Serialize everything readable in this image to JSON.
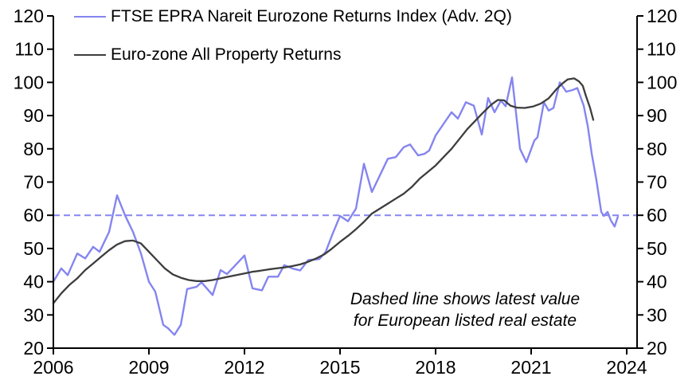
{
  "annotation": {
    "line1": "Dashed line shows latest value",
    "line2": "for European listed real estate"
  },
  "chart_data": {
    "type": "line",
    "title": "",
    "xlabel": "",
    "ylabel": "",
    "grid": false,
    "legend_position": "top-left-inside",
    "x_axis": {
      "min": 2006,
      "max": 2024.33,
      "ticks": [
        2006,
        2009,
        2012,
        2015,
        2018,
        2021,
        2024
      ]
    },
    "y_axis": {
      "min": 20,
      "max": 120,
      "ticks": [
        20,
        30,
        40,
        50,
        60,
        70,
        80,
        90,
        100,
        110,
        120
      ],
      "mirrored_right": true
    },
    "reference_line": {
      "value": 60,
      "style": "dashed",
      "color": "#8585f0"
    },
    "axis_color": "#000000",
    "series": [
      {
        "name": "FTSE EPRA Nareit Eurozone Returns Index (Adv. 2Q)",
        "color": "#8585f0",
        "width": 2.4,
        "points": [
          [
            2006.0,
            40
          ],
          [
            2006.25,
            44
          ],
          [
            2006.45,
            42
          ],
          [
            2006.75,
            48.5
          ],
          [
            2007.0,
            47
          ],
          [
            2007.25,
            50.5
          ],
          [
            2007.45,
            49
          ],
          [
            2007.75,
            55
          ],
          [
            2008.0,
            66
          ],
          [
            2008.25,
            60
          ],
          [
            2008.5,
            55
          ],
          [
            2008.75,
            48.5
          ],
          [
            2009.0,
            40
          ],
          [
            2009.2,
            37
          ],
          [
            2009.45,
            27
          ],
          [
            2009.6,
            26
          ],
          [
            2009.8,
            24
          ],
          [
            2010.0,
            27
          ],
          [
            2010.2,
            37.8
          ],
          [
            2010.5,
            38.5
          ],
          [
            2010.65,
            39.8
          ],
          [
            2011.0,
            36
          ],
          [
            2011.25,
            43.5
          ],
          [
            2011.45,
            42.3
          ],
          [
            2011.7,
            44.8
          ],
          [
            2012.0,
            47.9
          ],
          [
            2012.25,
            38
          ],
          [
            2012.55,
            37.4
          ],
          [
            2012.75,
            41.5
          ],
          [
            2013.05,
            41.5
          ],
          [
            2013.25,
            45
          ],
          [
            2013.5,
            44
          ],
          [
            2013.75,
            43.4
          ],
          [
            2014.0,
            46.5
          ],
          [
            2014.35,
            46.8
          ],
          [
            2014.55,
            49
          ],
          [
            2014.75,
            54
          ],
          [
            2015.0,
            59.8
          ],
          [
            2015.25,
            58.2
          ],
          [
            2015.5,
            62
          ],
          [
            2015.75,
            75.5
          ],
          [
            2016.0,
            67
          ],
          [
            2016.25,
            72
          ],
          [
            2016.5,
            77
          ],
          [
            2016.75,
            77.5
          ],
          [
            2017.0,
            80.5
          ],
          [
            2017.2,
            81.3
          ],
          [
            2017.45,
            78
          ],
          [
            2017.65,
            78.5
          ],
          [
            2017.8,
            79.5
          ],
          [
            2018.0,
            84
          ],
          [
            2018.25,
            87.5
          ],
          [
            2018.5,
            91
          ],
          [
            2018.7,
            89.1
          ],
          [
            2018.95,
            94
          ],
          [
            2019.2,
            93
          ],
          [
            2019.45,
            84.3
          ],
          [
            2019.65,
            95.3
          ],
          [
            2019.85,
            91
          ],
          [
            2020.05,
            94.5
          ],
          [
            2020.2,
            92.8
          ],
          [
            2020.4,
            101.5
          ],
          [
            2020.65,
            80
          ],
          [
            2020.85,
            76
          ],
          [
            2021.1,
            82.5
          ],
          [
            2021.2,
            83.5
          ],
          [
            2021.4,
            94
          ],
          [
            2021.55,
            91.5
          ],
          [
            2021.7,
            92.3
          ],
          [
            2021.9,
            100
          ],
          [
            2022.1,
            97.2
          ],
          [
            2022.3,
            97.7
          ],
          [
            2022.45,
            98.3
          ],
          [
            2022.65,
            93
          ],
          [
            2022.78,
            86.7
          ],
          [
            2022.9,
            78.6
          ],
          [
            2023.05,
            70.5
          ],
          [
            2023.2,
            61
          ],
          [
            2023.28,
            59.8
          ],
          [
            2023.4,
            61
          ],
          [
            2023.5,
            58.5
          ],
          [
            2023.62,
            56.6
          ],
          [
            2023.72,
            59.5
          ]
        ]
      },
      {
        "name": "Euro-zone All Property Returns",
        "color": "#3d3d3d",
        "width": 2.3,
        "points": [
          [
            2006.0,
            33.5
          ],
          [
            2006.25,
            36.5
          ],
          [
            2006.5,
            39
          ],
          [
            2006.75,
            41
          ],
          [
            2007.0,
            43.5
          ],
          [
            2007.25,
            45.5
          ],
          [
            2007.5,
            47.5
          ],
          [
            2007.75,
            49.5
          ],
          [
            2008.0,
            51.2
          ],
          [
            2008.25,
            52.2
          ],
          [
            2008.5,
            52.4
          ],
          [
            2008.75,
            51.5
          ],
          [
            2009.0,
            49
          ],
          [
            2009.25,
            46.5
          ],
          [
            2009.5,
            44
          ],
          [
            2009.75,
            42.2
          ],
          [
            2010.0,
            41.2
          ],
          [
            2010.25,
            40.5
          ],
          [
            2010.5,
            40.2
          ],
          [
            2010.75,
            40.2
          ],
          [
            2011.0,
            40.5
          ],
          [
            2011.25,
            41
          ],
          [
            2011.5,
            41.5
          ],
          [
            2011.75,
            42
          ],
          [
            2012.0,
            42.5
          ],
          [
            2012.25,
            43
          ],
          [
            2012.5,
            43.3
          ],
          [
            2012.75,
            43.7
          ],
          [
            2013.0,
            44
          ],
          [
            2013.25,
            44.3
          ],
          [
            2013.5,
            44.7
          ],
          [
            2013.75,
            45.2
          ],
          [
            2014.0,
            46
          ],
          [
            2014.25,
            47
          ],
          [
            2014.5,
            48.2
          ],
          [
            2014.75,
            50
          ],
          [
            2015.0,
            52
          ],
          [
            2015.25,
            53.8
          ],
          [
            2015.5,
            55.8
          ],
          [
            2015.75,
            58
          ],
          [
            2016.0,
            60.5
          ],
          [
            2016.25,
            62
          ],
          [
            2016.5,
            63.5
          ],
          [
            2016.75,
            65
          ],
          [
            2017.0,
            66.5
          ],
          [
            2017.25,
            68.5
          ],
          [
            2017.5,
            71
          ],
          [
            2017.75,
            73
          ],
          [
            2018.0,
            75
          ],
          [
            2018.25,
            77.5
          ],
          [
            2018.5,
            80
          ],
          [
            2018.75,
            83
          ],
          [
            2019.0,
            86
          ],
          [
            2019.25,
            88.5
          ],
          [
            2019.5,
            91
          ],
          [
            2019.75,
            93.3
          ],
          [
            2019.95,
            94.7
          ],
          [
            2020.15,
            94.6
          ],
          [
            2020.35,
            93
          ],
          [
            2020.55,
            92.4
          ],
          [
            2020.8,
            92.3
          ],
          [
            2021.05,
            92.7
          ],
          [
            2021.3,
            93.6
          ],
          [
            2021.55,
            95.2
          ],
          [
            2021.8,
            98
          ],
          [
            2022.0,
            99.8
          ],
          [
            2022.15,
            100.9
          ],
          [
            2022.35,
            101.2
          ],
          [
            2022.5,
            100.3
          ],
          [
            2022.62,
            99
          ],
          [
            2022.72,
            95.9
          ],
          [
            2022.85,
            92.3
          ],
          [
            2022.95,
            88.7
          ]
        ]
      }
    ]
  }
}
